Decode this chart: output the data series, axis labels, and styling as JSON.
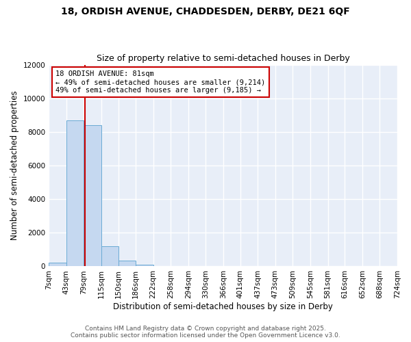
{
  "title_line1": "18, ORDISH AVENUE, CHADDESDEN, DERBY, DE21 6QF",
  "title_line2": "Size of property relative to semi-detached houses in Derby",
  "xlabel": "Distribution of semi-detached houses by size in Derby",
  "ylabel": "Number of semi-detached properties",
  "bin_edges": [
    7,
    43,
    79,
    115,
    150,
    186,
    222,
    258,
    294,
    330,
    366,
    401,
    437,
    473,
    509,
    545,
    581,
    616,
    652,
    688,
    724
  ],
  "bin_heights": [
    230,
    8700,
    8400,
    1200,
    350,
    120,
    30,
    10,
    5,
    3,
    2,
    2,
    1,
    1,
    1,
    1,
    0,
    0,
    0,
    0
  ],
  "bar_color": "#c5d8f0",
  "bar_edge_color": "#6aaad4",
  "property_size": 81,
  "red_line_color": "#cc0000",
  "annotation_text": "18 ORDISH AVENUE: 81sqm\n← 49% of semi-detached houses are smaller (9,214)\n49% of semi-detached houses are larger (9,185) →",
  "annotation_box_facecolor": "#ffffff",
  "annotation_box_edgecolor": "#cc0000",
  "ylim": [
    0,
    12000
  ],
  "yticks": [
    0,
    2000,
    4000,
    6000,
    8000,
    10000,
    12000
  ],
  "xlim": [
    7,
    724
  ],
  "plot_bg_color": "#e8eef8",
  "fig_bg_color": "#ffffff",
  "grid_color": "#ffffff",
  "footer_line1": "Contains HM Land Registry data © Crown copyright and database right 2025.",
  "footer_line2": "Contains public sector information licensed under the Open Government Licence v3.0.",
  "title_fontsize": 10,
  "subtitle_fontsize": 9,
  "annotation_fontsize": 7.5,
  "axis_label_fontsize": 8.5,
  "tick_fontsize": 7.5,
  "footer_fontsize": 6.5
}
